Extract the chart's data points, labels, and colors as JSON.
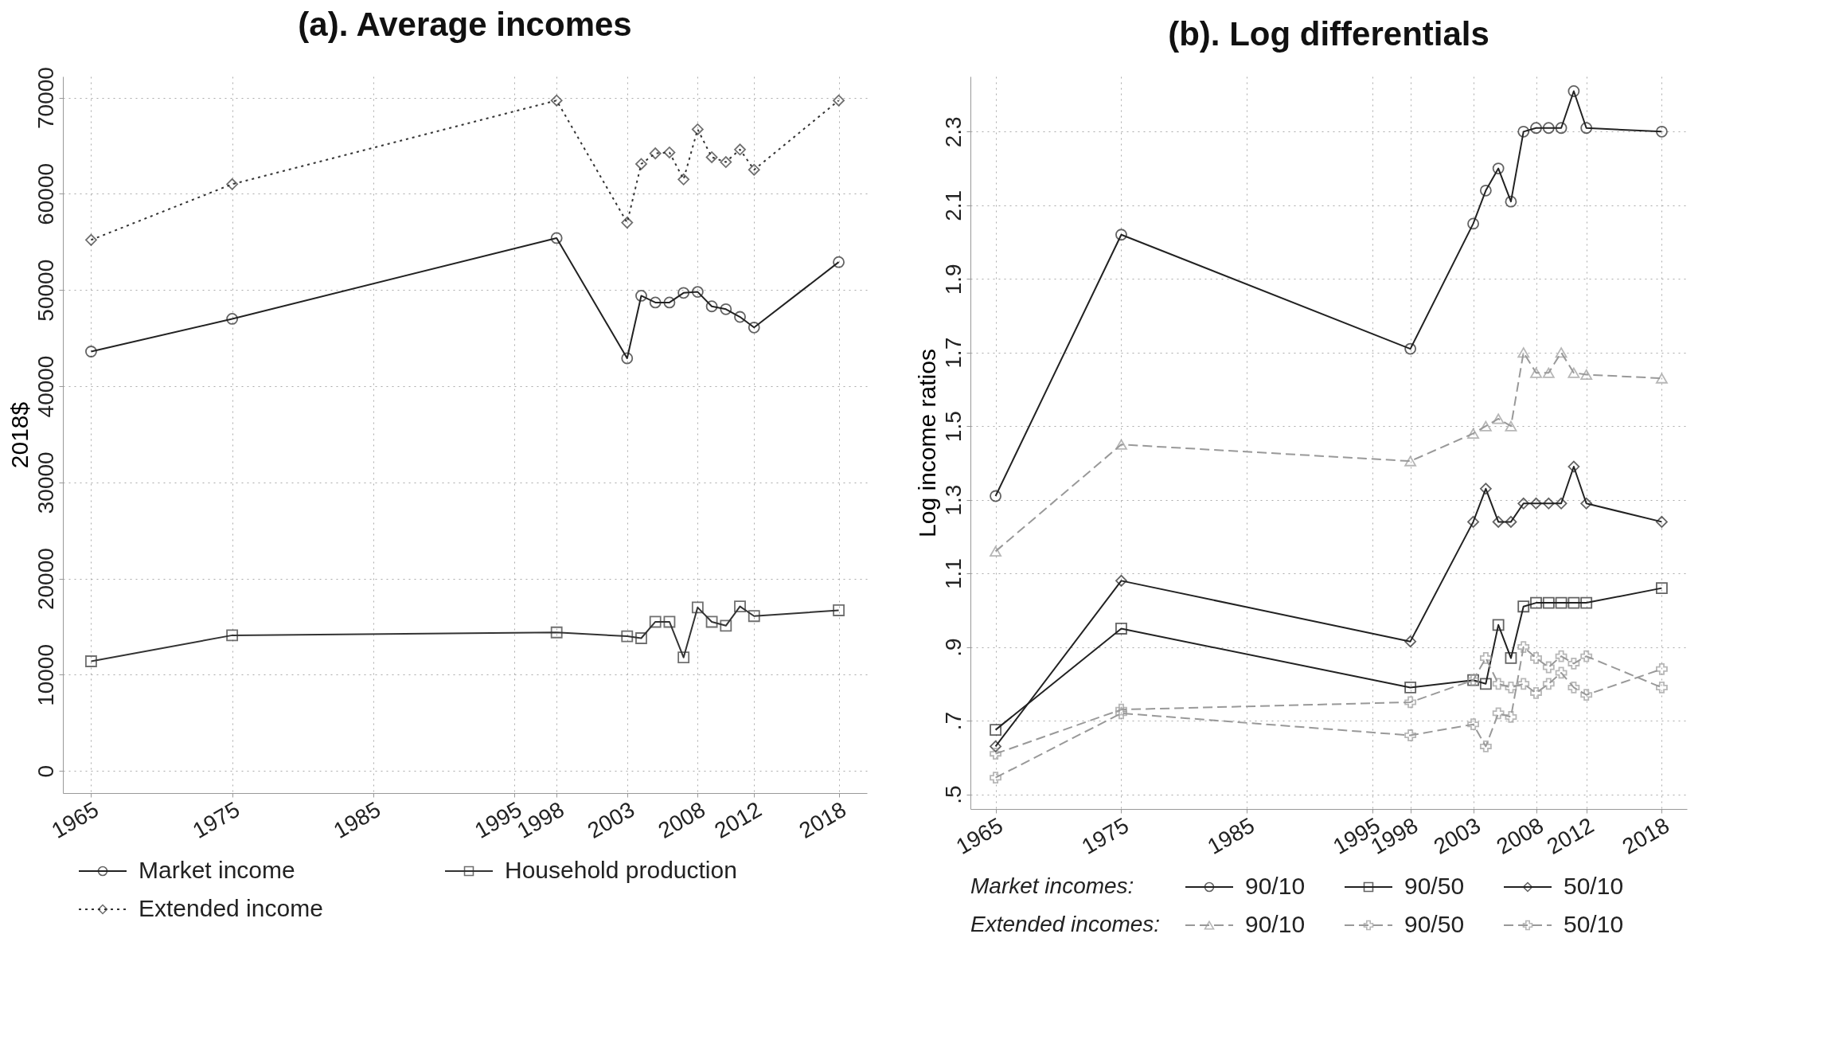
{
  "chart_data": [
    {
      "type": "line",
      "title": "(a). Average incomes",
      "ylabel": "2018$",
      "x": [
        1965,
        1975,
        1998,
        2003,
        2004,
        2005,
        2006,
        2007,
        2008,
        2009,
        2010,
        2011,
        2012,
        2018
      ],
      "xlim": [
        1963,
        2020
      ],
      "xticks": [
        1965,
        1975,
        1985,
        1995,
        1998,
        2003,
        2008,
        2012,
        2018
      ],
      "ylim": [
        -2300,
        72200
      ],
      "yticks": [
        0,
        10000,
        20000,
        30000,
        40000,
        50000,
        60000,
        70000
      ],
      "grid": true,
      "legend": "bottom",
      "series": [
        {
          "name": "Market income",
          "color": "#222222",
          "marker": "circle",
          "line_style": "solid",
          "values": [
            43600,
            47000,
            55400,
            42900,
            49400,
            48700,
            48700,
            49700,
            49800,
            48300,
            48000,
            47200,
            46100,
            52900
          ]
        },
        {
          "name": "Household production",
          "color": "#333333",
          "marker": "square",
          "line_style": "solid",
          "values": [
            11400,
            14100,
            14400,
            14000,
            13800,
            15500,
            15500,
            11800,
            17000,
            15500,
            15100,
            17100,
            16100,
            16700
          ]
        },
        {
          "name": "Extended income",
          "color": "#333333",
          "marker": "diamond",
          "line_style": "dotted",
          "values": [
            55200,
            61000,
            69700,
            57000,
            63100,
            64200,
            64300,
            61500,
            66700,
            63800,
            63300,
            64600,
            62500,
            69700
          ]
        }
      ]
    },
    {
      "type": "line",
      "title": "(b). Log differentials",
      "ylabel": "Log income ratios",
      "x": [
        1965,
        1975,
        1998,
        2003,
        2004,
        2005,
        2006,
        2007,
        2008,
        2009,
        2010,
        2011,
        2012,
        2018
      ],
      "xlim": [
        1963,
        2020
      ],
      "xticks": [
        1965,
        1975,
        1985,
        1995,
        1998,
        2003,
        2008,
        2012,
        2018
      ],
      "ylim": [
        0.46,
        2.45
      ],
      "yticks": [
        {
          "value": 0.5,
          "label": ".5"
        },
        {
          "value": 0.7,
          "label": ".7"
        },
        {
          "value": 0.9,
          "label": ".9"
        },
        1.1,
        1.3,
        1.5,
        1.7,
        1.9,
        2.1,
        2.3
      ],
      "grid": true,
      "legend": "bottom",
      "legend_title": [
        "Market incomes:",
        "Extended incomes:"
      ],
      "series": [
        {
          "name": "90/10",
          "color": "#222222",
          "marker": "circle",
          "line_style": "solid",
          "values": [
            1.31,
            2.02,
            1.71,
            2.05,
            2.14,
            2.2,
            2.11,
            2.3,
            2.31,
            2.31,
            2.31,
            2.41,
            2.31,
            2.3
          ]
        },
        {
          "name": "90/50",
          "color": "#222222",
          "marker": "square",
          "line_style": "solid",
          "values": [
            0.675,
            0.95,
            0.79,
            0.81,
            0.8,
            0.96,
            0.87,
            1.01,
            1.02,
            1.02,
            1.02,
            1.02,
            1.02,
            1.06
          ]
        },
        {
          "name": "50/10",
          "color": "#222222",
          "marker": "diamond",
          "line_style": "solid",
          "values": [
            0.63,
            1.08,
            0.915,
            1.24,
            1.33,
            1.24,
            1.24,
            1.29,
            1.29,
            1.29,
            1.29,
            1.39,
            1.29,
            1.24
          ]
        },
        {
          "name": "90/10",
          "color": "#999999",
          "marker": "triangle",
          "line_style": "dashed",
          "values": [
            1.16,
            1.45,
            1.405,
            1.48,
            1.5,
            1.52,
            1.5,
            1.7,
            1.645,
            1.645,
            1.7,
            1.645,
            1.64,
            1.63
          ]
        },
        {
          "name": "90/50",
          "color": "#999999",
          "marker": "cross",
          "line_style": "dashed",
          "values": [
            0.61,
            0.73,
            0.75,
            0.81,
            0.87,
            0.8,
            0.79,
            0.8,
            0.775,
            0.8,
            0.83,
            0.79,
            0.77,
            0.84
          ]
        },
        {
          "name": "50/10",
          "color": "#999999",
          "marker": "cross",
          "line_style": "dashed",
          "values": [
            0.545,
            0.72,
            0.66,
            0.69,
            0.63,
            0.72,
            0.71,
            0.9,
            0.87,
            0.845,
            0.875,
            0.855,
            0.875,
            0.79
          ]
        }
      ]
    }
  ]
}
